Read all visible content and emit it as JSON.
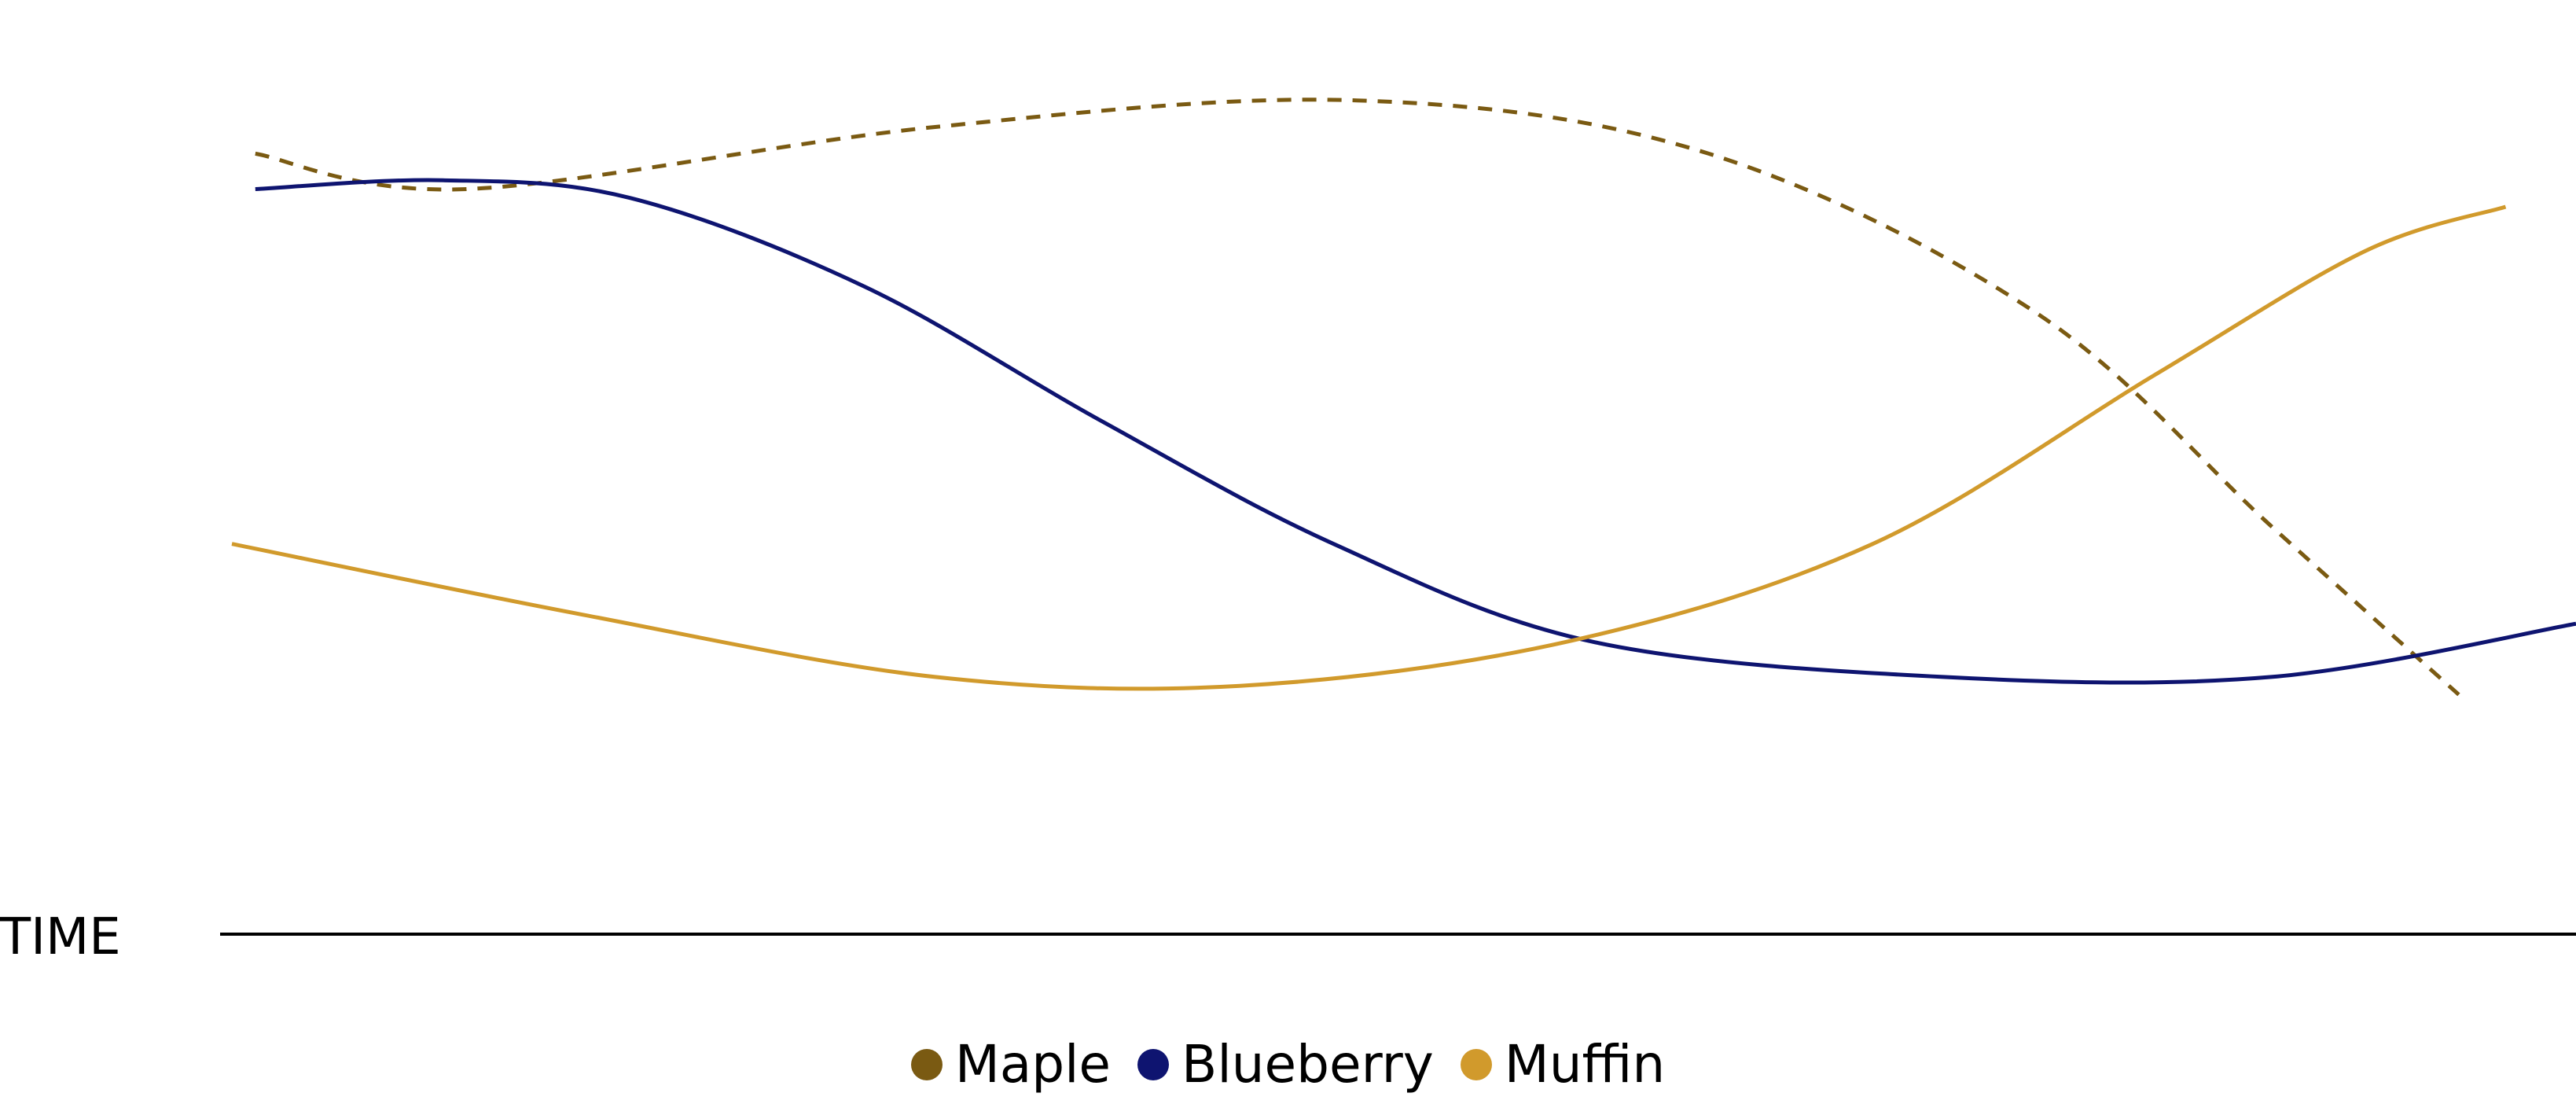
{
  "chart_data": {
    "type": "line",
    "xlabel": "TIME",
    "ylabel": "",
    "title": "",
    "grid": false,
    "axis_ticks": false,
    "legend_position": "bottom-center",
    "x_range": [
      0,
      100
    ],
    "y_range": [
      0,
      100
    ],
    "series": [
      {
        "name": "Maple",
        "color": "#7a5a12",
        "style": "dashed",
        "x": [
          1,
          10,
          30,
          48,
          63,
          77,
          87,
          95
        ],
        "y": [
          88,
          84,
          91,
          94,
          88,
          70,
          46,
          27
        ]
      },
      {
        "name": "Blueberry",
        "color": "#0e1470",
        "style": "solid",
        "x": [
          1,
          9,
          17,
          27,
          37,
          47,
          58,
          73,
          87,
          100
        ],
        "y": [
          84,
          85,
          83,
          73,
          58,
          44,
          33,
          29,
          29,
          35
        ]
      },
      {
        "name": "Muffin",
        "color": "#d19a2c",
        "style": "solid",
        "x": [
          0,
          15,
          30,
          43,
          57,
          70,
          82,
          91,
          97
        ],
        "y": [
          44,
          36,
          29,
          28,
          33,
          44,
          63,
          77,
          82
        ]
      }
    ]
  }
}
